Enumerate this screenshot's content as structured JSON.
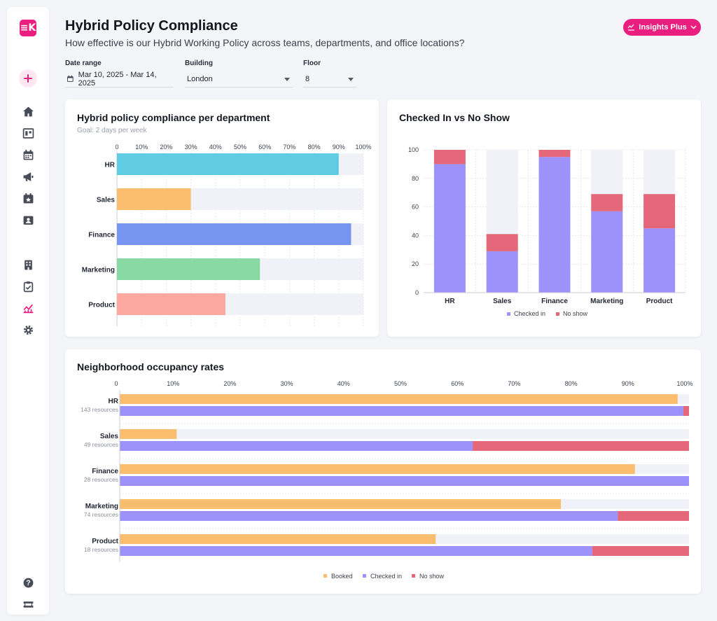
{
  "app": {
    "logo_text": "≡K"
  },
  "sidebar": {
    "items": [
      {
        "name": "add",
        "icon": "plus-icon"
      },
      {
        "name": "home",
        "icon": "home-icon"
      },
      {
        "name": "bookings",
        "icon": "desk-icon"
      },
      {
        "name": "calendar",
        "icon": "calendar-icon"
      },
      {
        "name": "announcements",
        "icon": "megaphone-icon"
      },
      {
        "name": "events",
        "icon": "calendar-star-icon"
      },
      {
        "name": "visitors",
        "icon": "id-card-icon"
      },
      {
        "name": "buildings",
        "icon": "building-icon"
      },
      {
        "name": "tasks",
        "icon": "clipboard-icon"
      },
      {
        "name": "insights",
        "icon": "chart-icon"
      },
      {
        "name": "settings",
        "icon": "gear-icon"
      },
      {
        "name": "help",
        "icon": "help-icon"
      },
      {
        "name": "tickets",
        "icon": "ticket-icon"
      }
    ]
  },
  "header": {
    "title": "Hybrid Policy Compliance",
    "subtitle": "How effective is our Hybrid Working Policy across teams, departments, and office locations?",
    "insights_label": "Insights Plus"
  },
  "filters": {
    "date_label": "Date range",
    "date_value": "Mar 10, 2025 - Mar 14, 2025",
    "building_label": "Building",
    "building_value": "London",
    "floor_label": "Floor",
    "floor_value": "8"
  },
  "colors": {
    "accent": "#e91e7f",
    "checked_in": "#9d92fc",
    "no_show": "#e4677a",
    "booked": "#fbbd6e",
    "track": "#f1f2f7"
  },
  "chart_data": [
    {
      "type": "bar",
      "orientation": "horizontal",
      "title": "Hybrid policy compliance per department",
      "subtitle": "Goal: 2 days per week",
      "categories": [
        "HR",
        "Sales",
        "Finance",
        "Marketing",
        "Product"
      ],
      "values": [
        90,
        30,
        95,
        58,
        44
      ],
      "colors": [
        "#5fcce4",
        "#fbbd6e",
        "#7795f0",
        "#88d9a4",
        "#fca7a0"
      ],
      "ticks": [
        "0",
        "10%",
        "20%",
        "30%",
        "40%",
        "50%",
        "60%",
        "70%",
        "80%",
        "90%",
        "100%"
      ],
      "xlim": [
        0,
        100
      ]
    },
    {
      "type": "bar",
      "stacked": true,
      "title": "Checked In vs No Show",
      "categories": [
        "HR",
        "Sales",
        "Finance",
        "Marketing",
        "Product"
      ],
      "series": [
        {
          "name": "Checked in",
          "values": [
            90,
            29,
            95,
            57,
            45
          ]
        },
        {
          "name": "No show",
          "values": [
            10,
            12,
            5,
            12,
            24
          ]
        }
      ],
      "ticks": [
        "0",
        "20",
        "40",
        "60",
        "80",
        "100"
      ],
      "ylim": [
        0,
        100
      ]
    },
    {
      "type": "bar",
      "orientation": "horizontal",
      "title": "Neighborhood occupancy rates",
      "categories": [
        "HR",
        "Sales",
        "Finance",
        "Marketing",
        "Product"
      ],
      "resources": [
        "143 resources",
        "49 resources",
        "28 resources",
        "74 resources",
        "18 resources"
      ],
      "series": [
        {
          "name": "Booked",
          "values": [
            98,
            10,
            90.5,
            77.5,
            55.5
          ]
        },
        {
          "name": "Checked in",
          "values": [
            99,
            62,
            100,
            87.5,
            83
          ]
        },
        {
          "name": "No show",
          "values": [
            1,
            38,
            0,
            12.5,
            17
          ]
        }
      ],
      "ticks": [
        "0",
        "10%",
        "20%",
        "30%",
        "40%",
        "50%",
        "60%",
        "70%",
        "80%",
        "90%",
        "100%"
      ],
      "xlim": [
        0,
        100
      ]
    }
  ]
}
